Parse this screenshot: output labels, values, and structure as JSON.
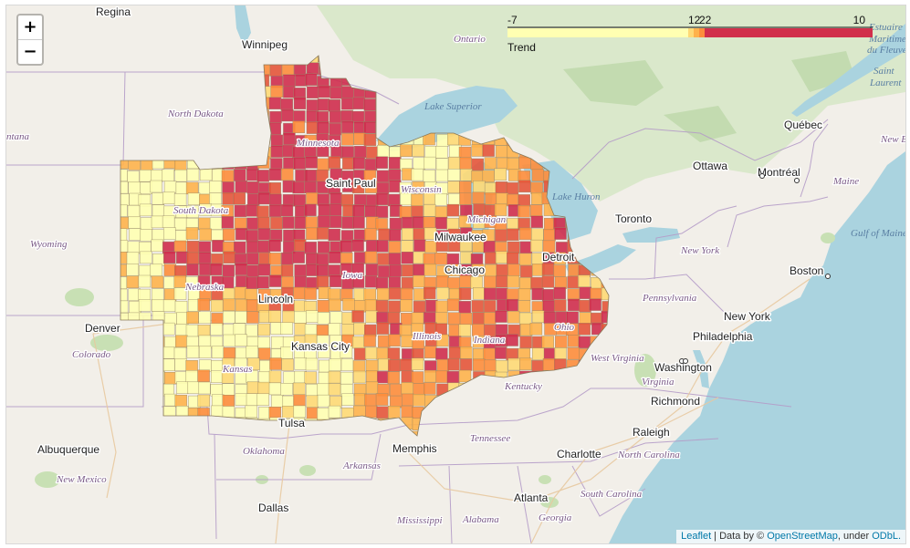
{
  "zoom": {
    "in_label": "+",
    "out_label": "−"
  },
  "legend": {
    "title": "Trend",
    "ticks": [
      "-7",
      "12",
      "22",
      "10"
    ],
    "colors": [
      "#ffffb2",
      "#fed976",
      "#feb24c",
      "#fd8d3c",
      "#f03b20",
      "#bd0026"
    ]
  },
  "attribution": {
    "leaflet": "Leaflet",
    "sep": " | Data by © ",
    "osm": "OpenStreetMap",
    "under": ", under ",
    "odbl": "ODbL."
  },
  "colors": {
    "land": "#f2efe9",
    "water": "#aad3df",
    "park": "#c8e0b4",
    "border": "#a98ebd",
    "county_stroke": "#9a9a7a"
  },
  "places": [
    {
      "id": "regina",
      "label": "Regina",
      "kind": "city"
    },
    {
      "id": "winnipeg",
      "label": "Winnipeg",
      "kind": "city"
    },
    {
      "id": "ontario",
      "label": "Ontario",
      "kind": "region"
    },
    {
      "id": "north-dakota",
      "label": "North Dakota",
      "kind": "region"
    },
    {
      "id": "montana",
      "label": "ntana",
      "kind": "region"
    },
    {
      "id": "lake-superior",
      "label": "Lake Superior",
      "kind": "water"
    },
    {
      "id": "quebec",
      "label": "Québec",
      "kind": "city"
    },
    {
      "id": "ottawa",
      "label": "Ottawa",
      "kind": "city"
    },
    {
      "id": "montreal",
      "label": "Montréal",
      "kind": "city"
    },
    {
      "id": "maine",
      "label": "Maine",
      "kind": "region"
    },
    {
      "id": "new-brunswick",
      "label": "New B",
      "kind": "region"
    },
    {
      "id": "lake-huron",
      "label": "Lake Huron",
      "kind": "water"
    },
    {
      "id": "toronto",
      "label": "Toronto",
      "kind": "city"
    },
    {
      "id": "wyoming",
      "label": "Wyoming",
      "kind": "region"
    },
    {
      "id": "minnesota",
      "label": "Minnesota",
      "kind": "region"
    },
    {
      "id": "saint-paul",
      "label": "Saint Paul",
      "kind": "city"
    },
    {
      "id": "wisconsin",
      "label": "Wisconsin",
      "kind": "region"
    },
    {
      "id": "south-dakota",
      "label": "South Dakota",
      "kind": "region"
    },
    {
      "id": "michigan",
      "label": "Michigan",
      "kind": "region"
    },
    {
      "id": "milwaukee",
      "label": "Milwaukee",
      "kind": "city"
    },
    {
      "id": "detroit",
      "label": "Detroit",
      "kind": "city"
    },
    {
      "id": "chicago",
      "label": "Chicago",
      "kind": "city"
    },
    {
      "id": "iowa",
      "label": "Iowa",
      "kind": "region"
    },
    {
      "id": "nebraska",
      "label": "Nebraska",
      "kind": "region"
    },
    {
      "id": "lincoln",
      "label": "Lincoln",
      "kind": "city"
    },
    {
      "id": "new-york-state",
      "label": "New York",
      "kind": "region"
    },
    {
      "id": "boston",
      "label": "Boston",
      "kind": "city"
    },
    {
      "id": "gulf-of-maine",
      "label": "Gulf of Maine",
      "kind": "water"
    },
    {
      "id": "pennsylvania",
      "label": "Pennsylvania",
      "kind": "region"
    },
    {
      "id": "new-york",
      "label": "New York",
      "kind": "city"
    },
    {
      "id": "philadelphia",
      "label": "Philadelphia",
      "kind": "city"
    },
    {
      "id": "denver",
      "label": "Denver",
      "kind": "city"
    },
    {
      "id": "colorado",
      "label": "Colorado",
      "kind": "region"
    },
    {
      "id": "kansas-city",
      "label": "Kansas City",
      "kind": "city"
    },
    {
      "id": "kansas",
      "label": "Kansas",
      "kind": "region"
    },
    {
      "id": "illinois",
      "label": "Illinois",
      "kind": "region"
    },
    {
      "id": "indiana",
      "label": "Indiana",
      "kind": "region"
    },
    {
      "id": "ohio",
      "label": "Ohio",
      "kind": "region"
    },
    {
      "id": "west-virginia",
      "label": "West Virginia",
      "kind": "region"
    },
    {
      "id": "washington",
      "label": "Washington",
      "kind": "city"
    },
    {
      "id": "virginia",
      "label": "Virginia",
      "kind": "region"
    },
    {
      "id": "richmond",
      "label": "Richmond",
      "kind": "city"
    },
    {
      "id": "kentucky",
      "label": "Kentucky",
      "kind": "region"
    },
    {
      "id": "tulsa",
      "label": "Tulsa",
      "kind": "city"
    },
    {
      "id": "tennessee",
      "label": "Tennessee",
      "kind": "region"
    },
    {
      "id": "raleigh",
      "label": "Raleigh",
      "kind": "city"
    },
    {
      "id": "albuquerque",
      "label": "Albuquerque",
      "kind": "city"
    },
    {
      "id": "oklahoma",
      "label": "Oklahoma",
      "kind": "region"
    },
    {
      "id": "memphis",
      "label": "Memphis",
      "kind": "city"
    },
    {
      "id": "charlotte",
      "label": "Charlotte",
      "kind": "city"
    },
    {
      "id": "north-carolina",
      "label": "North Carolina",
      "kind": "region"
    },
    {
      "id": "new-mexico",
      "label": "New Mexico",
      "kind": "region"
    },
    {
      "id": "arkansas",
      "label": "Arkansas",
      "kind": "region"
    },
    {
      "id": "south-carolina",
      "label": "South Carolina",
      "kind": "region"
    },
    {
      "id": "atlanta",
      "label": "Atlanta",
      "kind": "city"
    },
    {
      "id": "dallas",
      "label": "Dallas",
      "kind": "city"
    },
    {
      "id": "mississippi",
      "label": "Mississippi",
      "kind": "region"
    },
    {
      "id": "alabama",
      "label": "Alabama",
      "kind": "region"
    },
    {
      "id": "georgia",
      "label": "Georgia",
      "kind": "region"
    },
    {
      "id": "estuaire",
      "label": "Estuaire",
      "kind": "water"
    },
    {
      "id": "maritime",
      "label": "Maritime",
      "kind": "water"
    },
    {
      "id": "fleuve",
      "label": "du Fleuve",
      "kind": "water"
    },
    {
      "id": "saint",
      "label": "Saint",
      "kind": "water"
    },
    {
      "id": "laurent",
      "label": "Laurent",
      "kind": "water"
    }
  ]
}
